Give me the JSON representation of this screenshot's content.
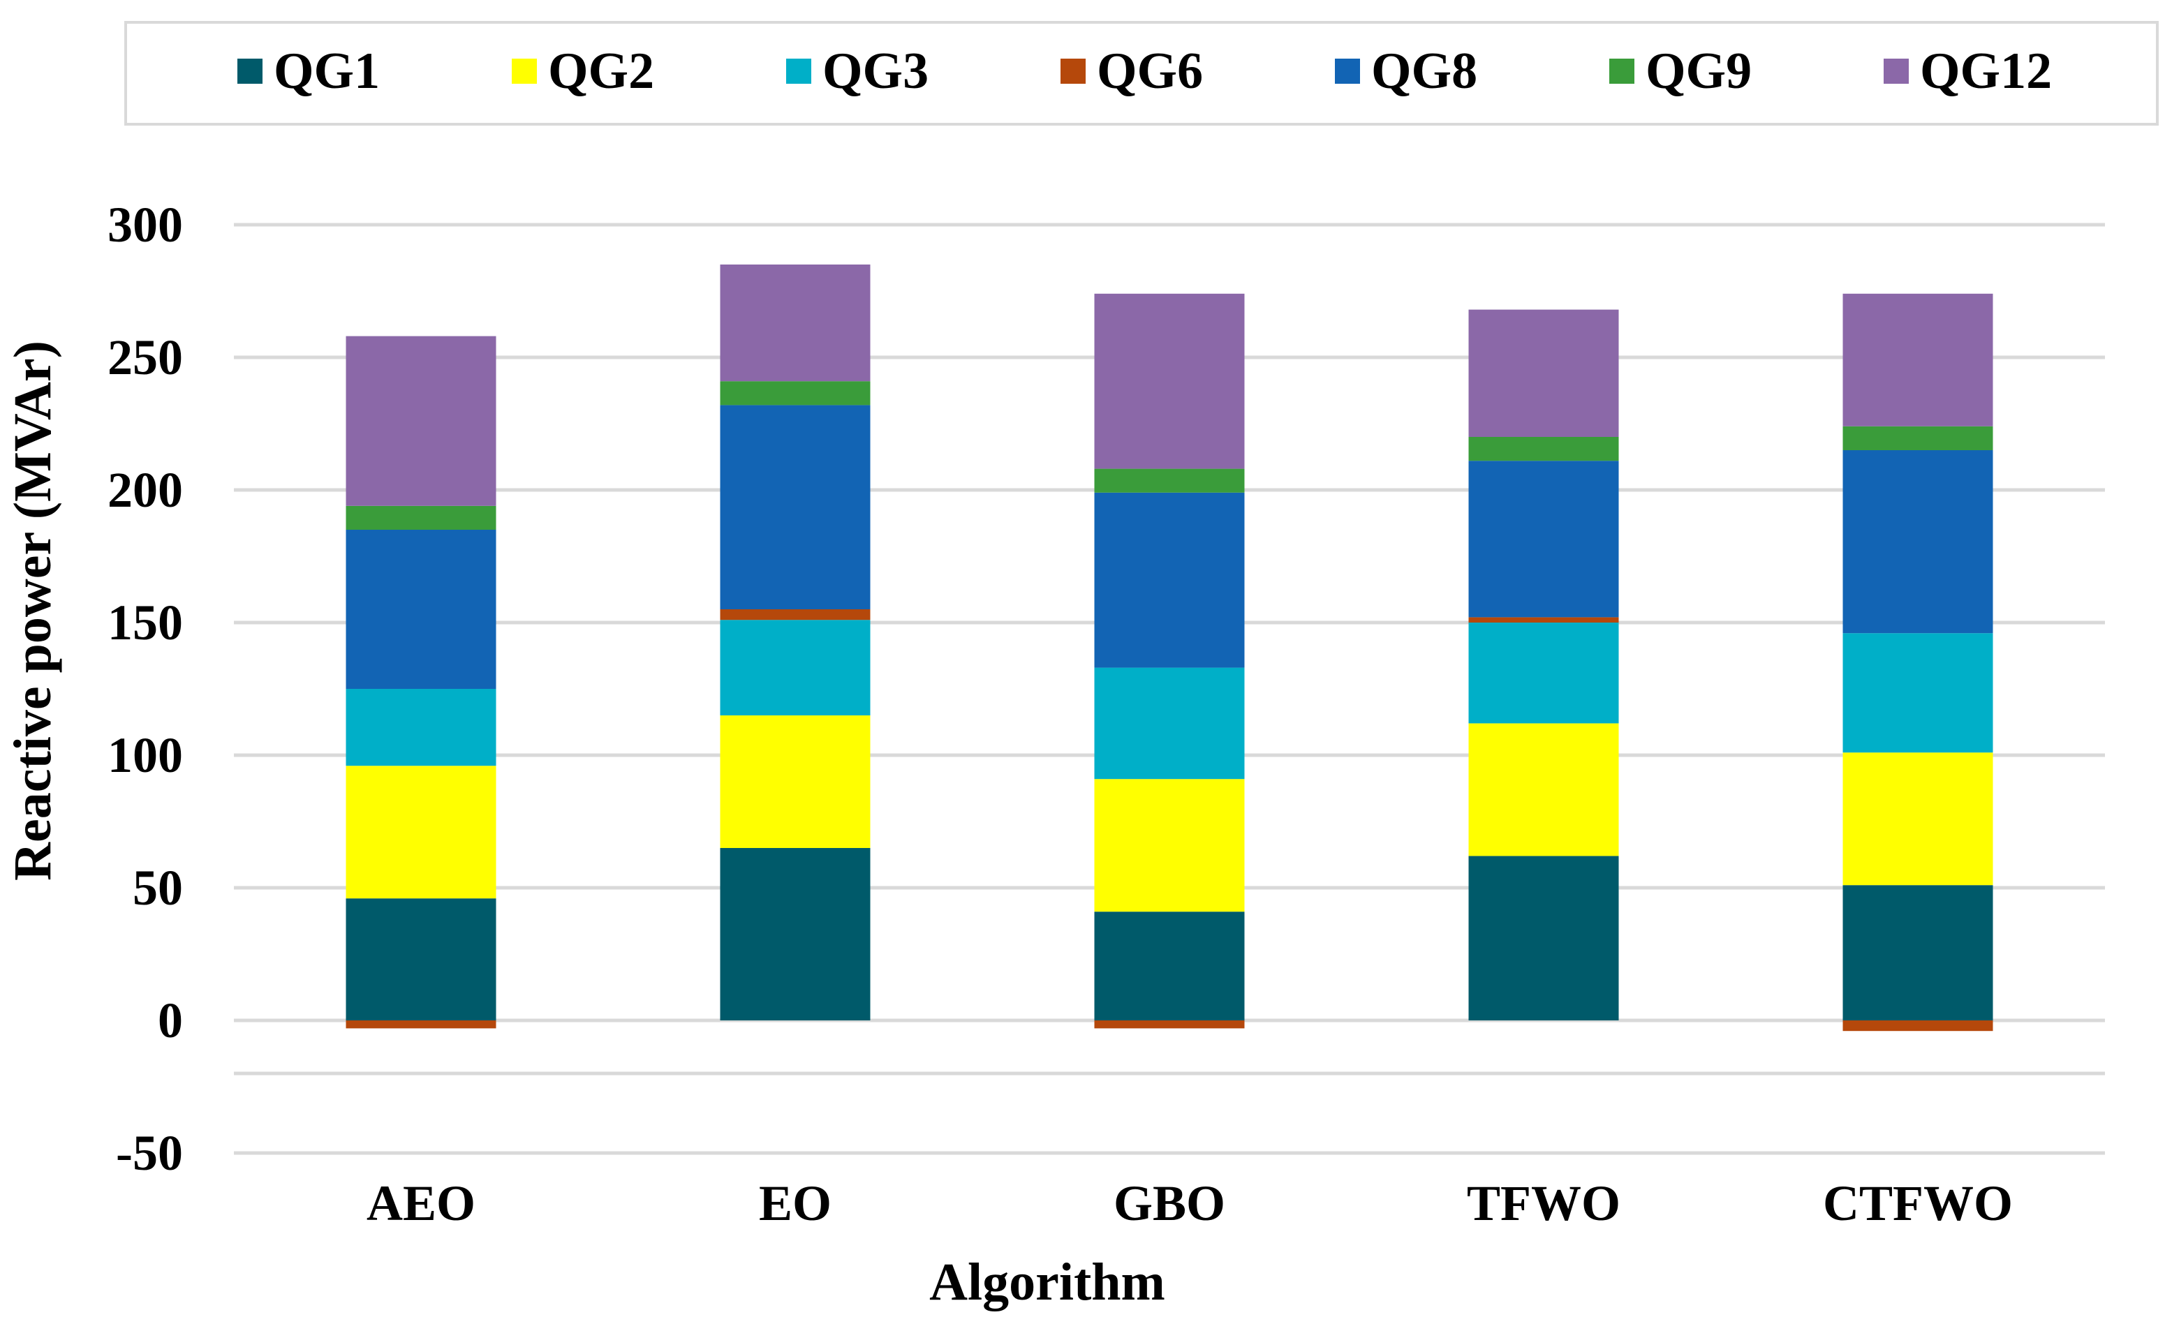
{
  "chart_data": {
    "type": "bar",
    "stacked": true,
    "title": "",
    "xlabel": "Algorithm",
    "ylabel": "Reactive power (MVAr)",
    "ylim": [
      -50,
      300
    ],
    "yticks": [
      -50,
      0,
      50,
      100,
      150,
      200,
      250,
      300
    ],
    "grid": true,
    "legend_position": "top",
    "categories": [
      "AEO",
      "EO",
      "GBO",
      "TFWO",
      "CTFWO"
    ],
    "series": [
      {
        "name": "QG1",
        "color": "#005A6A",
        "values": [
          46,
          65,
          41,
          62,
          51
        ]
      },
      {
        "name": "QG2",
        "color": "#FFFF00",
        "values": [
          50,
          50,
          50,
          50,
          50
        ]
      },
      {
        "name": "QG3",
        "color": "#00AFC8",
        "values": [
          29,
          36,
          42,
          38,
          45
        ]
      },
      {
        "name": "QG6",
        "color": "#B5480B",
        "values": [
          -3,
          4,
          -3,
          2,
          -4
        ]
      },
      {
        "name": "QG8",
        "color": "#1264B4",
        "values": [
          60,
          77,
          66,
          59,
          69
        ]
      },
      {
        "name": "QG9",
        "color": "#3A9C3A",
        "values": [
          9,
          9,
          9,
          9,
          9
        ]
      },
      {
        "name": "QG12",
        "color": "#8B68A8",
        "values": [
          64,
          44,
          66,
          48,
          50
        ]
      }
    ]
  }
}
